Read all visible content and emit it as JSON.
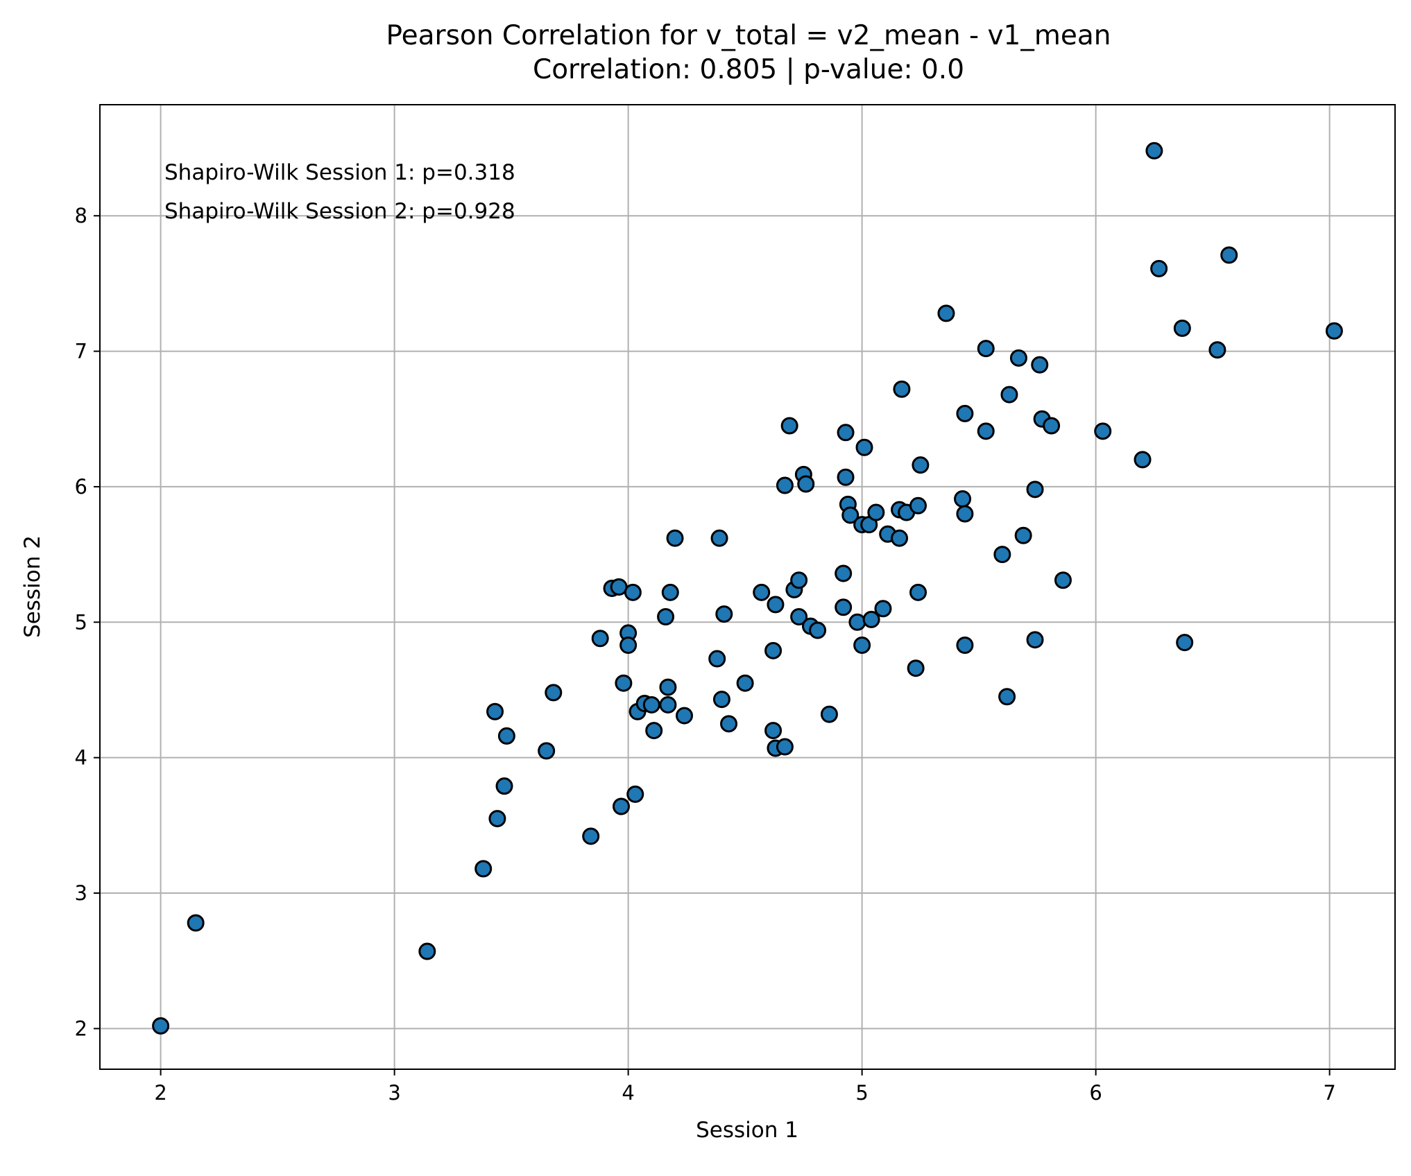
{
  "chart_data": {
    "type": "scatter",
    "title": "Pearson Correlation for v_total = v2_mean - v1_mean",
    "subtitle": "Correlation: 0.805 | p-value: 0.0",
    "xlabel": "Session 1",
    "ylabel": "Session 2",
    "xlim": [
      1.74,
      7.28
    ],
    "ylim": [
      1.7,
      8.82
    ],
    "xticks": [
      2,
      3,
      4,
      5,
      6,
      7
    ],
    "yticks": [
      2,
      3,
      4,
      5,
      6,
      7,
      8
    ],
    "grid": true,
    "marker_color": "#1f77b4",
    "annotations": [
      "Shapiro-Wilk Session 1: p=0.318",
      "Shapiro-Wilk Session 2: p=0.928"
    ],
    "points": [
      {
        "x": 2.0,
        "y": 2.02
      },
      {
        "x": 2.15,
        "y": 2.78
      },
      {
        "x": 3.14,
        "y": 2.57
      },
      {
        "x": 3.38,
        "y": 3.18
      },
      {
        "x": 3.43,
        "y": 4.34
      },
      {
        "x": 3.44,
        "y": 3.55
      },
      {
        "x": 3.47,
        "y": 3.79
      },
      {
        "x": 3.48,
        "y": 4.16
      },
      {
        "x": 3.65,
        "y": 4.05
      },
      {
        "x": 3.68,
        "y": 4.48
      },
      {
        "x": 3.84,
        "y": 3.42
      },
      {
        "x": 3.88,
        "y": 4.88
      },
      {
        "x": 3.93,
        "y": 5.25
      },
      {
        "x": 3.96,
        "y": 5.26
      },
      {
        "x": 3.97,
        "y": 3.64
      },
      {
        "x": 3.98,
        "y": 4.55
      },
      {
        "x": 4.0,
        "y": 4.92
      },
      {
        "x": 4.0,
        "y": 4.83
      },
      {
        "x": 4.02,
        "y": 5.22
      },
      {
        "x": 4.03,
        "y": 3.73
      },
      {
        "x": 4.04,
        "y": 4.34
      },
      {
        "x": 4.07,
        "y": 4.4
      },
      {
        "x": 4.1,
        "y": 4.39
      },
      {
        "x": 4.11,
        "y": 4.2
      },
      {
        "x": 4.16,
        "y": 5.04
      },
      {
        "x": 4.17,
        "y": 4.52
      },
      {
        "x": 4.17,
        "y": 4.39
      },
      {
        "x": 4.18,
        "y": 5.22
      },
      {
        "x": 4.2,
        "y": 5.62
      },
      {
        "x": 4.24,
        "y": 4.31
      },
      {
        "x": 4.38,
        "y": 4.73
      },
      {
        "x": 4.39,
        "y": 5.62
      },
      {
        "x": 4.4,
        "y": 4.43
      },
      {
        "x": 4.41,
        "y": 5.06
      },
      {
        "x": 4.43,
        "y": 4.25
      },
      {
        "x": 4.5,
        "y": 4.55
      },
      {
        "x": 4.57,
        "y": 5.22
      },
      {
        "x": 4.62,
        "y": 4.79
      },
      {
        "x": 4.62,
        "y": 4.2
      },
      {
        "x": 4.63,
        "y": 5.13
      },
      {
        "x": 4.63,
        "y": 4.07
      },
      {
        "x": 4.67,
        "y": 6.01
      },
      {
        "x": 4.67,
        "y": 4.08
      },
      {
        "x": 4.69,
        "y": 6.45
      },
      {
        "x": 4.71,
        "y": 5.24
      },
      {
        "x": 4.73,
        "y": 5.31
      },
      {
        "x": 4.73,
        "y": 5.04
      },
      {
        "x": 4.75,
        "y": 6.09
      },
      {
        "x": 4.76,
        "y": 6.02
      },
      {
        "x": 4.78,
        "y": 4.97
      },
      {
        "x": 4.81,
        "y": 4.94
      },
      {
        "x": 4.86,
        "y": 4.32
      },
      {
        "x": 4.92,
        "y": 5.36
      },
      {
        "x": 4.92,
        "y": 5.11
      },
      {
        "x": 4.93,
        "y": 6.4
      },
      {
        "x": 4.93,
        "y": 6.07
      },
      {
        "x": 4.94,
        "y": 5.87
      },
      {
        "x": 4.95,
        "y": 5.79
      },
      {
        "x": 4.98,
        "y": 5.0
      },
      {
        "x": 5.0,
        "y": 4.83
      },
      {
        "x": 5.0,
        "y": 5.72
      },
      {
        "x": 5.01,
        "y": 6.29
      },
      {
        "x": 5.03,
        "y": 5.72
      },
      {
        "x": 5.04,
        "y": 5.02
      },
      {
        "x": 5.06,
        "y": 5.81
      },
      {
        "x": 5.09,
        "y": 5.1
      },
      {
        "x": 5.11,
        "y": 5.65
      },
      {
        "x": 5.16,
        "y": 5.62
      },
      {
        "x": 5.16,
        "y": 5.83
      },
      {
        "x": 5.17,
        "y": 6.72
      },
      {
        "x": 5.19,
        "y": 5.81
      },
      {
        "x": 5.23,
        "y": 4.66
      },
      {
        "x": 5.24,
        "y": 5.86
      },
      {
        "x": 5.24,
        "y": 5.22
      },
      {
        "x": 5.25,
        "y": 6.16
      },
      {
        "x": 5.36,
        "y": 7.28
      },
      {
        "x": 5.43,
        "y": 5.91
      },
      {
        "x": 5.44,
        "y": 6.54
      },
      {
        "x": 5.44,
        "y": 5.8
      },
      {
        "x": 5.44,
        "y": 4.83
      },
      {
        "x": 5.53,
        "y": 7.02
      },
      {
        "x": 5.53,
        "y": 6.41
      },
      {
        "x": 5.6,
        "y": 5.5
      },
      {
        "x": 5.62,
        "y": 4.45
      },
      {
        "x": 5.63,
        "y": 6.68
      },
      {
        "x": 5.67,
        "y": 6.95
      },
      {
        "x": 5.69,
        "y": 5.64
      },
      {
        "x": 5.74,
        "y": 5.98
      },
      {
        "x": 5.74,
        "y": 4.87
      },
      {
        "x": 5.76,
        "y": 6.9
      },
      {
        "x": 5.77,
        "y": 6.5
      },
      {
        "x": 5.81,
        "y": 6.45
      },
      {
        "x": 5.86,
        "y": 5.31
      },
      {
        "x": 6.03,
        "y": 6.41
      },
      {
        "x": 6.2,
        "y": 6.2
      },
      {
        "x": 6.25,
        "y": 8.48
      },
      {
        "x": 6.27,
        "y": 7.61
      },
      {
        "x": 6.37,
        "y": 7.17
      },
      {
        "x": 6.38,
        "y": 4.85
      },
      {
        "x": 6.52,
        "y": 7.01
      },
      {
        "x": 6.57,
        "y": 7.71
      },
      {
        "x": 7.02,
        "y": 7.15
      }
    ]
  }
}
